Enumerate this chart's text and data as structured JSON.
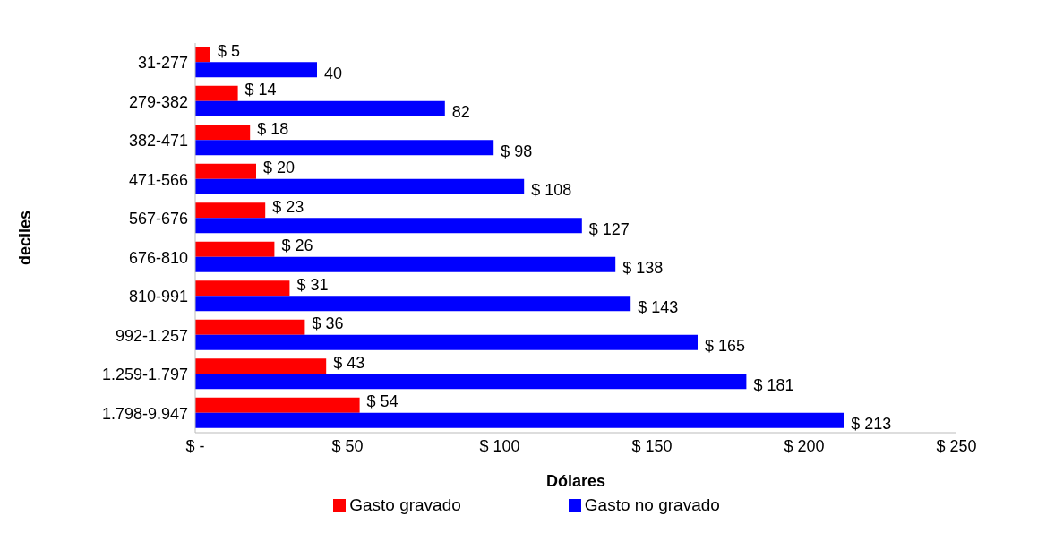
{
  "chart_data": {
    "type": "bar",
    "orientation": "horizontal",
    "xlabel": "Dólares",
    "ylabel": "deciles",
    "categories": [
      "31-277",
      "279-382",
      "382-471",
      "471-566",
      "567-676",
      "676-810",
      "810-991",
      "992-1.257",
      "1.259-1.797",
      "1.798-9.947"
    ],
    "series": [
      {
        "name": "Gasto gravado",
        "color": "#ff0000",
        "values": [
          5,
          14,
          18,
          20,
          23,
          26,
          31,
          36,
          43,
          54
        ],
        "value_labels": [
          "$ 5",
          "$ 14",
          "$ 18",
          "$ 20",
          "$ 23",
          "$ 26",
          "$ 31",
          "$ 36",
          "$ 43",
          "$ 54"
        ]
      },
      {
        "name": "Gasto no gravado",
        "color": "#0000ff",
        "values": [
          40,
          82,
          98,
          108,
          127,
          138,
          143,
          165,
          181,
          213
        ],
        "value_labels": [
          "40",
          "82",
          "$ 98",
          "$ 108",
          "$ 127",
          "$ 138",
          "$ 143",
          "$ 165",
          "$ 181",
          "$ 213"
        ]
      }
    ],
    "xlim": [
      0,
      250
    ],
    "xticks": [
      {
        "value": 0,
        "label": "$ -"
      },
      {
        "value": 50,
        "label": "$ 50"
      },
      {
        "value": 100,
        "label": "$ 100"
      },
      {
        "value": 150,
        "label": "$ 150"
      },
      {
        "value": 200,
        "label": "$ 200"
      },
      {
        "value": 250,
        "label": "$ 250"
      }
    ],
    "legend": "bottom"
  }
}
